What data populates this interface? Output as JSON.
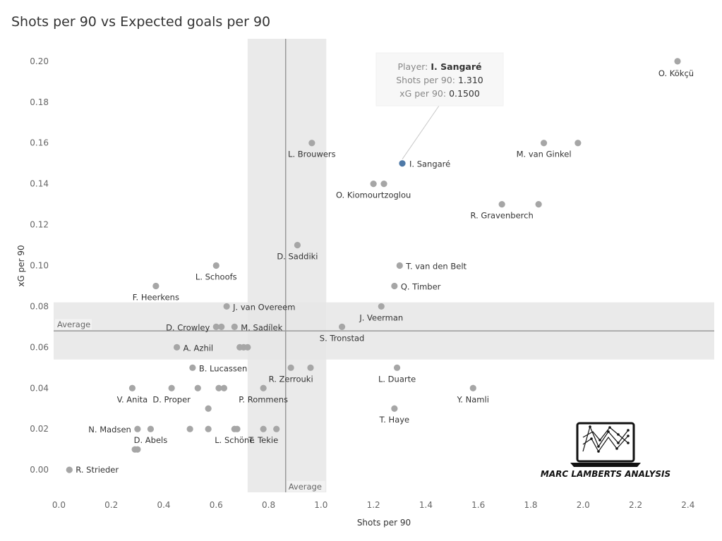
{
  "chart_data": {
    "type": "scatter",
    "title": "Shots per 90 vs Expected goals per 90",
    "xlabel": "Shots per 90",
    "ylabel": "xG per 90",
    "xlim": [
      -0.02,
      2.5
    ],
    "ylim": [
      -0.011,
      0.211
    ],
    "x_ticks": [
      "0.0",
      "0.2",
      "0.4",
      "0.6",
      "0.8",
      "1.0",
      "1.2",
      "1.4",
      "1.6",
      "1.8",
      "2.0",
      "2.2",
      "2.4"
    ],
    "y_ticks": [
      "0.00",
      "0.02",
      "0.04",
      "0.06",
      "0.08",
      "0.10",
      "0.12",
      "0.14",
      "0.16",
      "0.18",
      "0.20"
    ],
    "grid": false,
    "reference_lines": {
      "x_average": 0.865,
      "x_band": [
        0.72,
        1.02
      ],
      "x_label": "Average",
      "y_average": 0.068,
      "y_band": [
        0.054,
        0.082
      ],
      "y_label": "Average"
    },
    "colors": {
      "point": "#a6a6a6",
      "highlight": "#4e79a7",
      "band": "#e6e6e6",
      "line": "#9a9a9a"
    },
    "points": [
      {
        "x": 2.36,
        "y": 0.2,
        "label": "O. Kökçü"
      },
      {
        "x": 1.85,
        "y": 0.16,
        "label": "M. van Ginkel"
      },
      {
        "x": 1.98,
        "y": 0.16,
        "label": ""
      },
      {
        "x": 0.965,
        "y": 0.16,
        "label": "L. Brouwers"
      },
      {
        "x": 1.31,
        "y": 0.15,
        "label": "I. Sangaré",
        "highlight": true
      },
      {
        "x": 1.2,
        "y": 0.14,
        "label": "O. Kiomourtzoglou"
      },
      {
        "x": 1.24,
        "y": 0.14,
        "label": ""
      },
      {
        "x": 1.69,
        "y": 0.13,
        "label": "R. Gravenberch"
      },
      {
        "x": 1.83,
        "y": 0.13,
        "label": ""
      },
      {
        "x": 0.91,
        "y": 0.11,
        "label": "D. Saddiki"
      },
      {
        "x": 0.6,
        "y": 0.1,
        "label": "L. Schoofs"
      },
      {
        "x": 1.3,
        "y": 0.1,
        "label": "T. van den Belt"
      },
      {
        "x": 0.37,
        "y": 0.09,
        "label": "F. Heerkens"
      },
      {
        "x": 1.28,
        "y": 0.09,
        "label": "Q. Timber"
      },
      {
        "x": 0.64,
        "y": 0.08,
        "label": "J. van Overeem"
      },
      {
        "x": 1.23,
        "y": 0.08,
        "label": "J. Veerman"
      },
      {
        "x": 0.6,
        "y": 0.07,
        "label": "D. Crowley"
      },
      {
        "x": 0.62,
        "y": 0.07,
        "label": ""
      },
      {
        "x": 0.67,
        "y": 0.07,
        "label": "M. Sadílek"
      },
      {
        "x": 1.08,
        "y": 0.07,
        "label": "S. Tronstad"
      },
      {
        "x": 0.45,
        "y": 0.06,
        "label": "A. Azhil"
      },
      {
        "x": 0.69,
        "y": 0.06,
        "label": ""
      },
      {
        "x": 0.705,
        "y": 0.06,
        "label": ""
      },
      {
        "x": 0.72,
        "y": 0.06,
        "label": ""
      },
      {
        "x": 0.51,
        "y": 0.05,
        "label": "B. Lucassen"
      },
      {
        "x": 0.885,
        "y": 0.05,
        "label": "R. Zerrouki"
      },
      {
        "x": 0.96,
        "y": 0.05,
        "label": ""
      },
      {
        "x": 1.29,
        "y": 0.05,
        "label": "L. Duarte"
      },
      {
        "x": 0.28,
        "y": 0.04,
        "label": "V. Anita"
      },
      {
        "x": 0.43,
        "y": 0.04,
        "label": "D. Proper"
      },
      {
        "x": 0.53,
        "y": 0.04,
        "label": ""
      },
      {
        "x": 0.61,
        "y": 0.04,
        "label": ""
      },
      {
        "x": 0.63,
        "y": 0.04,
        "label": ""
      },
      {
        "x": 0.78,
        "y": 0.04,
        "label": "P. Rommens"
      },
      {
        "x": 1.58,
        "y": 0.04,
        "label": "Y. Namli"
      },
      {
        "x": 0.57,
        "y": 0.03,
        "label": ""
      },
      {
        "x": 1.28,
        "y": 0.03,
        "label": "T. Haye"
      },
      {
        "x": 0.3,
        "y": 0.02,
        "label": "N. Madsen"
      },
      {
        "x": 0.35,
        "y": 0.02,
        "label": "D. Abels"
      },
      {
        "x": 0.5,
        "y": 0.02,
        "label": ""
      },
      {
        "x": 0.57,
        "y": 0.02,
        "label": ""
      },
      {
        "x": 0.67,
        "y": 0.02,
        "label": "L. Schöne"
      },
      {
        "x": 0.68,
        "y": 0.02,
        "label": ""
      },
      {
        "x": 0.78,
        "y": 0.02,
        "label": "T. Tekie"
      },
      {
        "x": 0.83,
        "y": 0.02,
        "label": ""
      },
      {
        "x": 0.29,
        "y": 0.01,
        "label": ""
      },
      {
        "x": 0.3,
        "y": 0.01,
        "label": ""
      },
      {
        "x": 0.04,
        "y": 0.0,
        "label": "R. Strieder"
      }
    ],
    "tooltip": {
      "rows": [
        {
          "key": "Player:",
          "value": "I. Sangaré"
        },
        {
          "key": "Shots per 90:",
          "value": "1.310"
        },
        {
          "key": "xG per 90:",
          "value": "0.1500"
        }
      ]
    }
  },
  "branding": {
    "text": "MARC LAMBERTS ANALYSIS"
  }
}
